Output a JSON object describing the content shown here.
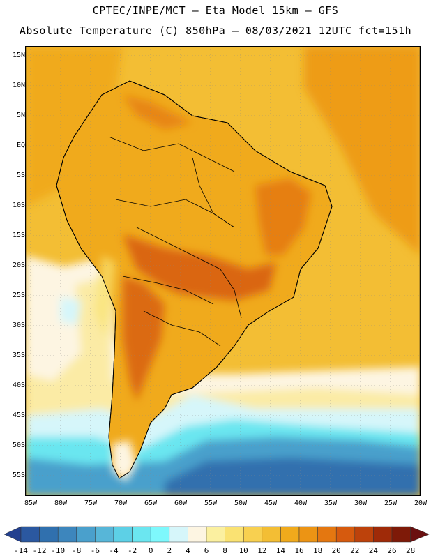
{
  "header": {
    "line1": "CPTEC/INPE/MCT –  Eta Model 15km – GFS",
    "line2": "Absolute Temperature (C) 850hPa – 08/03/2021 12UTC fct=151h"
  },
  "map": {
    "lat_labels": [
      "15N",
      "10N",
      "5N",
      "EQ",
      "5S",
      "10S",
      "15S",
      "20S",
      "25S",
      "30S",
      "35S",
      "40S",
      "45S",
      "50S",
      "55S"
    ],
    "lon_labels": [
      "85W",
      "80W",
      "75W",
      "70W",
      "65W",
      "60W",
      "55W",
      "50W",
      "45W",
      "40W",
      "35W",
      "30W",
      "25W",
      "20W"
    ]
  },
  "colorbar": {
    "labels": [
      "-14",
      "-12",
      "-10",
      "-8",
      "-6",
      "-4",
      "-2",
      "0",
      "2",
      "4",
      "6",
      "8",
      "10",
      "12",
      "14",
      "16",
      "18",
      "20",
      "22",
      "24",
      "26",
      "28"
    ],
    "colors": [
      "#23408f",
      "#2b58a0",
      "#3070ae",
      "#3d86bd",
      "#4aa0cc",
      "#57b6d8",
      "#5dd0e6",
      "#6be6f0",
      "#7ef8fc",
      "#d6f6fa",
      "#fdf5e2",
      "#fbf0a0",
      "#fae272",
      "#f8d050",
      "#f3be34",
      "#f0aa1c",
      "#ec9414",
      "#e47710",
      "#d65a0e",
      "#bd420b",
      "#9f2a08",
      "#7e1a08",
      "#6a1010"
    ]
  }
}
